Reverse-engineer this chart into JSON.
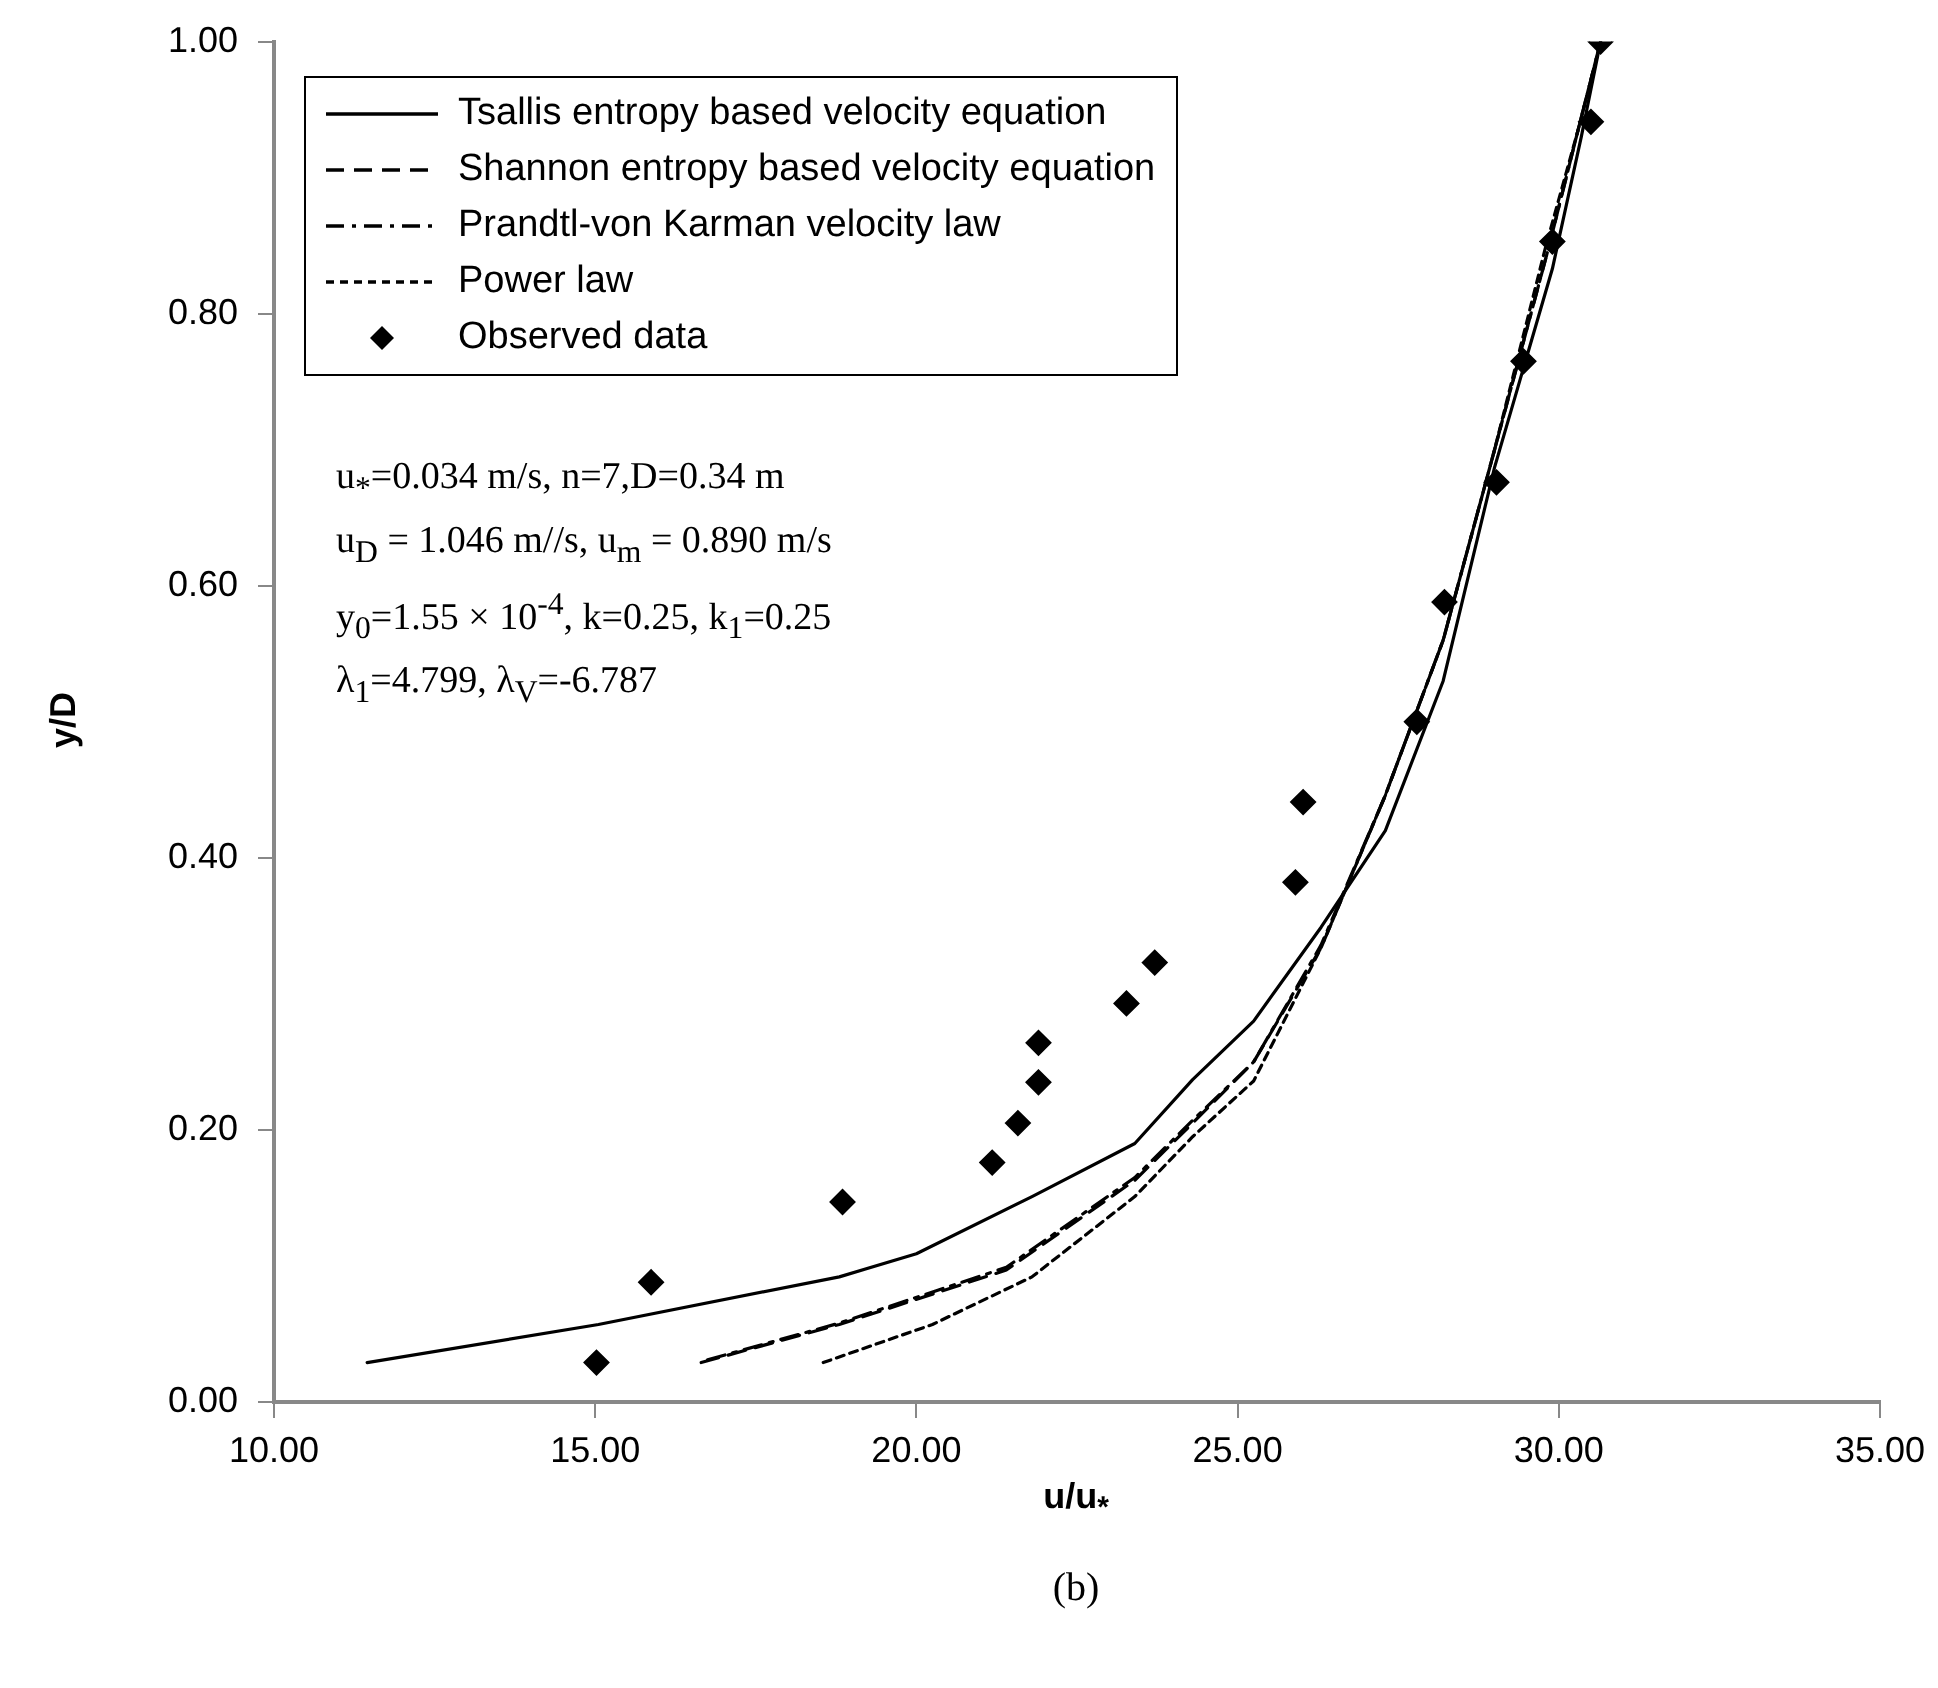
{
  "chart_data": {
    "type": "line",
    "xlabel": "u/u$_{*}$",
    "ylabel": "y/D",
    "xlim": [
      10,
      35
    ],
    "xticks": [
      {
        "value": 10,
        "label": "10.00"
      },
      {
        "value": 15,
        "label": "15.00"
      },
      {
        "value": 20,
        "label": "20.00"
      },
      {
        "value": 25,
        "label": "25.00"
      },
      {
        "value": 30,
        "label": "30.00"
      },
      {
        "value": 35,
        "label": "35.00"
      }
    ],
    "ylim": [
      0,
      1
    ],
    "yticks": [
      {
        "value": 0,
        "label": "0.00"
      },
      {
        "value": 0.2,
        "label": "0.20"
      },
      {
        "value": 0.4,
        "label": "0.40"
      },
      {
        "value": 0.6,
        "label": "0.60"
      },
      {
        "value": 0.8,
        "label": "0.80"
      },
      {
        "value": 1,
        "label": "1.00"
      }
    ],
    "grid": false,
    "legend": "top left",
    "series": [
      {
        "name": "Tsallis entropy based velocity equation",
        "color": "#000000",
        "line_style": "solid",
        "marker": "none",
        "x": [
          11.45,
          15.05,
          18.8,
          20.0,
          21.8,
          23.4,
          24.3,
          25.25,
          26.3,
          27.3,
          28.2,
          29.0,
          29.9,
          30.35,
          30.65
        ],
        "values": [
          0.029,
          0.057,
          0.092,
          0.109,
          0.151,
          0.19,
          0.237,
          0.28,
          0.349,
          0.42,
          0.53,
          0.687,
          0.833,
          0.93,
          1.0
        ]
      },
      {
        "name": "Shannon entropy based velocity equation",
        "color": "#000000",
        "line_style": "dashed",
        "marker": "none",
        "x": [
          16.65,
          18.8,
          21.4,
          23.4,
          24.3,
          25.25,
          26.3,
          27.3,
          28.2,
          29.0,
          29.85,
          30.3,
          30.65
        ],
        "values": [
          0.029,
          0.057,
          0.097,
          0.163,
          0.205,
          0.25,
          0.334,
          0.446,
          0.56,
          0.7,
          0.85,
          0.935,
          1.0
        ]
      },
      {
        "name": "Prandtl-von Karman velocity law",
        "color": "#000000",
        "line_style": "dashdot",
        "marker": "none",
        "x": [
          16.75,
          18.8,
          21.4,
          23.4,
          24.3,
          25.25,
          26.3,
          27.3,
          28.2,
          29.0,
          29.85,
          30.3,
          30.6
        ],
        "values": [
          0.031,
          0.058,
          0.099,
          0.165,
          0.207,
          0.25,
          0.336,
          0.446,
          0.56,
          0.7,
          0.85,
          0.935,
          0.99
        ]
      },
      {
        "name": "Power law",
        "color": "#000000",
        "line_style": "dotted",
        "marker": "none",
        "x": [
          18.55,
          20.25,
          21.8,
          23.4,
          24.3,
          25.25,
          26.3,
          27.3,
          28.2,
          29.0,
          29.8,
          30.3,
          30.65
        ],
        "values": [
          0.029,
          0.057,
          0.092,
          0.151,
          0.195,
          0.236,
          0.334,
          0.446,
          0.56,
          0.7,
          0.85,
          0.935,
          1.0
        ]
      },
      {
        "name": "Observed data",
        "type": "scatter",
        "color": "#000000",
        "marker": "diamond",
        "x": [
          15.02,
          15.87,
          18.85,
          21.18,
          21.58,
          21.9,
          21.9,
          23.27,
          23.71,
          25.9,
          26.02,
          27.79,
          28.22,
          29.03,
          29.45,
          29.9,
          30.5,
          30.65
        ],
        "values": [
          0.029,
          0.088,
          0.147,
          0.176,
          0.205,
          0.235,
          0.264,
          0.293,
          0.323,
          0.382,
          0.441,
          0.5,
          0.588,
          0.676,
          0.765,
          0.853,
          0.941,
          1.0
        ]
      }
    ],
    "annotations": [
      "u$_{*}$=0.034 m/s, n=7,D=0.34 m",
      "u$_{D}$ = 1.046 m//s, u$_{m}$ = 0.890 m/s",
      "y$_{0}$=1.55 × 10$^{-4}$, k=0.25, k$_{1}$=0.25",
      "λ$_{1}$=4.799, λ$_{V}$=-6.787",
      "(b)"
    ]
  }
}
